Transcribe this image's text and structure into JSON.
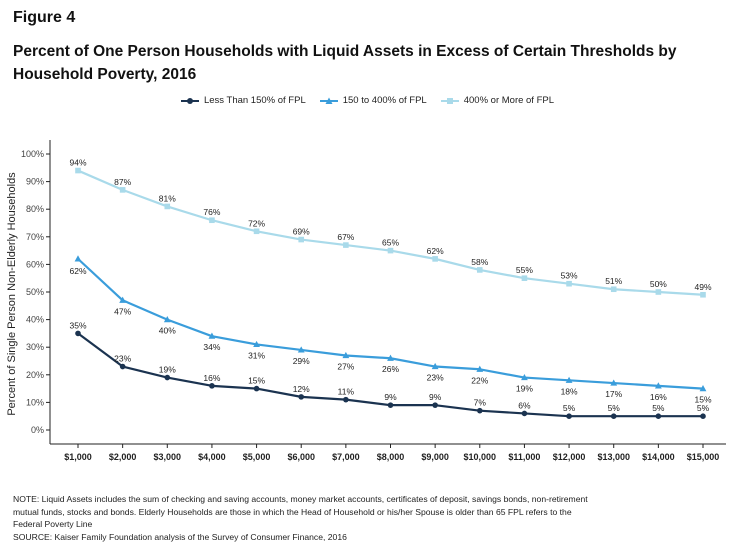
{
  "figure_label": "Figure 4",
  "title": "Percent of One Person Households with Liquid Assets in Excess of Certain Thresholds by Household Poverty, 2016",
  "colors": {
    "series1": "#1b3350",
    "series2": "#3a9ddb",
    "series3": "#a9daea",
    "axis": "#222222",
    "tick_text": "#444444"
  },
  "legend": [
    {
      "label": "Less Than 150% of FPL",
      "marker": "circle",
      "color": "#1b3350"
    },
    {
      "label": "150 to 400% of FPL",
      "marker": "triangle",
      "color": "#3a9ddb"
    },
    {
      "label": "400% or More of FPL",
      "marker": "square",
      "color": "#a9daea"
    }
  ],
  "notes": [
    "NOTE: Liquid Assets includes the sum of checking and saving accounts, money market accounts, certificates of deposit, savings bonds, non-retirement",
    "mutual funds, stocks and bonds.  Elderly Households are those in which the Head of Household or his/her Spouse is older than 65 FPL refers to the",
    "Federal Poverty Line",
    "SOURCE: Kaiser Family Foundation analysis of the Survey of Consumer Finance, 2016"
  ],
  "chart_data": {
    "type": "line",
    "xlabel": "",
    "ylabel": "Percent of Single Person Non-Elderly Households",
    "ylim": [
      0,
      100
    ],
    "yticks": [
      0,
      10,
      20,
      30,
      40,
      50,
      60,
      70,
      80,
      90,
      100
    ],
    "ytick_labels": [
      "0%",
      "10%",
      "20%",
      "30%",
      "40%",
      "50%",
      "60%",
      "70%",
      "80%",
      "90%",
      "100%"
    ],
    "categories": [
      "$1,000",
      "$2,000",
      "$3,000",
      "$4,000",
      "$5,000",
      "$6,000",
      "$7,000",
      "$8,000",
      "$9,000",
      "$10,000",
      "$11,000",
      "$12,000",
      "$13,000",
      "$14,000",
      "$15,000"
    ],
    "grid": false,
    "legend_position": "top",
    "series": [
      {
        "name": "Less Than 150% of FPL",
        "marker": "circle",
        "color": "#1b3350",
        "values": [
          35,
          23,
          19,
          16,
          15,
          12,
          11,
          9,
          9,
          7,
          6,
          5,
          5,
          5,
          5
        ],
        "labels": [
          "35%",
          "23%",
          "19%",
          "16%",
          "15%",
          "12%",
          "11%",
          "9%",
          "9%",
          "7%",
          "6%",
          "5%",
          "5%",
          "5%",
          "5%"
        ]
      },
      {
        "name": "150 to 400% of FPL",
        "marker": "triangle",
        "color": "#3a9ddb",
        "values": [
          62,
          47,
          40,
          34,
          31,
          29,
          27,
          26,
          23,
          22,
          19,
          18,
          17,
          16,
          15
        ],
        "labels": [
          "62%",
          "47%",
          "40%",
          "34%",
          "31%",
          "29%",
          "27%",
          "26%",
          "23%",
          "22%",
          "19%",
          "18%",
          "17%",
          "16%",
          "15%"
        ]
      },
      {
        "name": "400% or More of FPL",
        "marker": "square",
        "color": "#a9daea",
        "values": [
          94,
          87,
          81,
          76,
          72,
          69,
          67,
          65,
          62,
          58,
          55,
          53,
          51,
          50,
          49
        ],
        "labels": [
          "94%",
          "87%",
          "81%",
          "76%",
          "72%",
          "69%",
          "67%",
          "65%",
          "62%",
          "58%",
          "55%",
          "53%",
          "51%",
          "50%",
          "49%"
        ]
      }
    ]
  }
}
